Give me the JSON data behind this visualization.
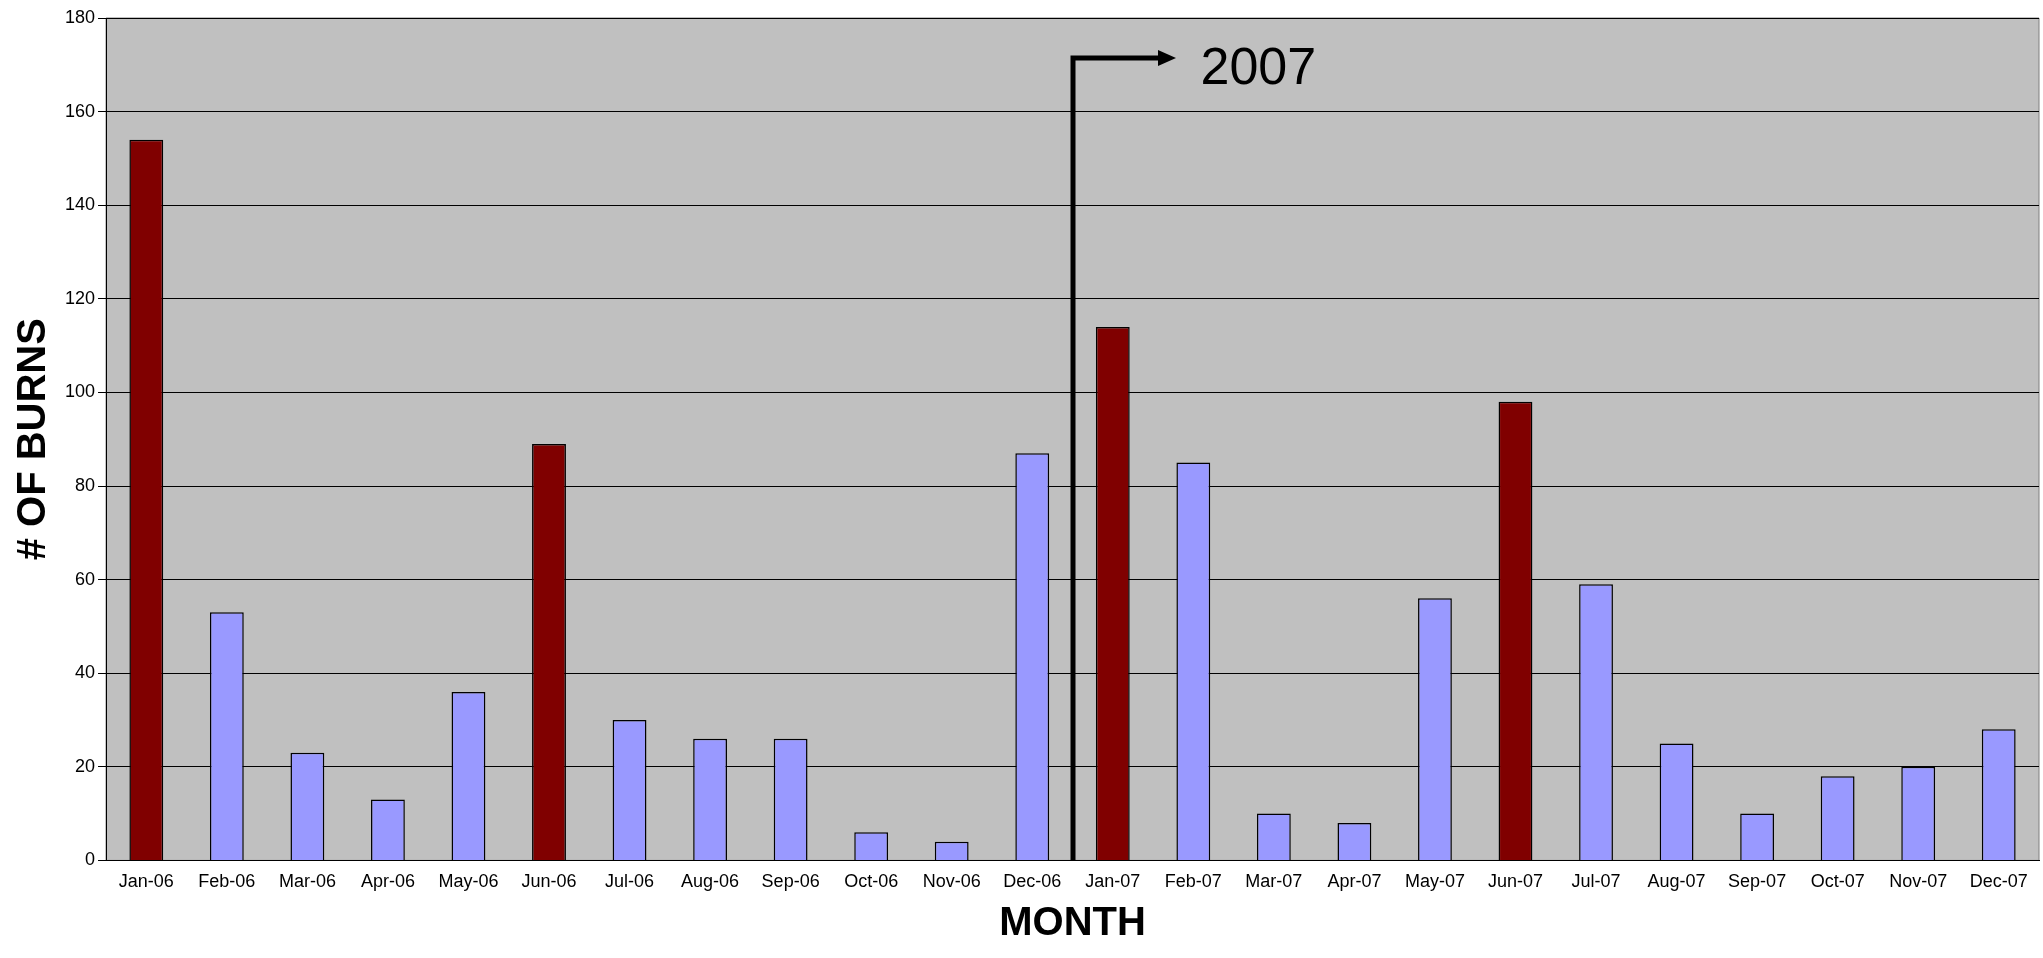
{
  "chart_data": {
    "type": "bar",
    "xlabel": "MONTH",
    "ylabel": "# OF BURNS",
    "categories": [
      "Jan-06",
      "Feb-06",
      "Mar-06",
      "Apr-06",
      "May-06",
      "Jun-06",
      "Jul-06",
      "Aug-06",
      "Sep-06",
      "Oct-06",
      "Nov-06",
      "Dec-06",
      "Jan-07",
      "Feb-07",
      "Mar-07",
      "Apr-07",
      "May-07",
      "Jun-07",
      "Jul-07",
      "Aug-07",
      "Sep-07",
      "Oct-07",
      "Nov-07",
      "Dec-07"
    ],
    "values": [
      154,
      53,
      23,
      13,
      36,
      89,
      30,
      26,
      26,
      6,
      4,
      87,
      114,
      85,
      10,
      8,
      56,
      98,
      59,
      25,
      10,
      18,
      20,
      28
    ],
    "colors": [
      "#800000",
      "#9999ff",
      "#9999ff",
      "#9999ff",
      "#9999ff",
      "#800000",
      "#9999ff",
      "#9999ff",
      "#9999ff",
      "#9999ff",
      "#9999ff",
      "#9999ff",
      "#800000",
      "#9999ff",
      "#9999ff",
      "#9999ff",
      "#9999ff",
      "#800000",
      "#9999ff",
      "#9999ff",
      "#9999ff",
      "#9999ff",
      "#9999ff",
      "#9999ff"
    ],
    "ylim": [
      0,
      180
    ],
    "yticks": [
      0,
      20,
      40,
      60,
      80,
      100,
      120,
      140,
      160,
      180
    ],
    "grid": "y",
    "annotations": [
      "2007"
    ]
  }
}
